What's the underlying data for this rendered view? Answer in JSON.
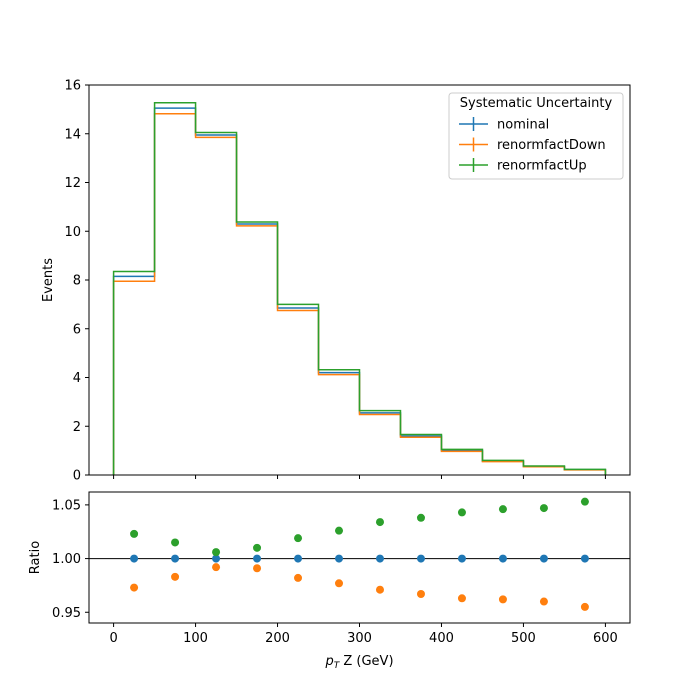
{
  "chart_data": [
    {
      "panel": "top",
      "type": "line",
      "style": "step-histogram",
      "ylabel": "Events",
      "ylim": [
        0,
        16
      ],
      "xlim": [
        -30,
        630
      ],
      "yticks": [
        0,
        2,
        4,
        6,
        8,
        10,
        12,
        14,
        16
      ],
      "bin_edges": [
        0,
        50,
        100,
        150,
        200,
        250,
        300,
        350,
        400,
        450,
        500,
        550,
        600
      ],
      "legend": {
        "title": "Systematic Uncertainty",
        "placement": "top-right"
      },
      "series": [
        {
          "name": "nominal",
          "color": "#1f77b4",
          "values": [
            8.15,
            15.05,
            13.95,
            10.3,
            6.85,
            4.2,
            2.55,
            1.6,
            1.0,
            0.57,
            0.35,
            0.22
          ]
        },
        {
          "name": "renormfactDown",
          "color": "#ff7f0e",
          "values": [
            7.95,
            14.82,
            13.85,
            10.22,
            6.75,
            4.12,
            2.48,
            1.55,
            0.97,
            0.55,
            0.34,
            0.21
          ]
        },
        {
          "name": "renormfactUp",
          "color": "#2ca02c",
          "values": [
            8.35,
            15.27,
            14.05,
            10.38,
            7.0,
            4.32,
            2.64,
            1.66,
            1.05,
            0.6,
            0.37,
            0.23
          ]
        }
      ]
    },
    {
      "panel": "bottom",
      "type": "scatter",
      "ylabel": "Ratio",
      "xlabel": "p_T Z (GeV)",
      "xlabel_main": "p",
      "xlabel_sub": "T",
      "xlabel_rest": " Z (GeV)",
      "ylim": [
        0.94,
        1.062
      ],
      "xlim": [
        -30,
        630
      ],
      "yticks": [
        0.95,
        1.0,
        1.05
      ],
      "ytick_labels": [
        "0.95",
        "1.00",
        "1.05"
      ],
      "xticks": [
        0,
        100,
        200,
        300,
        400,
        500,
        600
      ],
      "reference_line": 1.0,
      "x": [
        25,
        75,
        125,
        175,
        225,
        275,
        325,
        375,
        425,
        475,
        525,
        575
      ],
      "series": [
        {
          "name": "nominal",
          "color": "#1f77b4",
          "values": [
            1.0,
            1.0,
            1.0,
            1.0,
            1.0,
            1.0,
            1.0,
            1.0,
            1.0,
            1.0,
            1.0,
            1.0
          ]
        },
        {
          "name": "renormfactDown",
          "color": "#ff7f0e",
          "values": [
            0.973,
            0.983,
            0.992,
            0.991,
            0.982,
            0.977,
            0.971,
            0.967,
            0.963,
            0.962,
            0.96,
            0.955
          ]
        },
        {
          "name": "renormfactUp",
          "color": "#2ca02c",
          "values": [
            1.023,
            1.015,
            1.006,
            1.01,
            1.019,
            1.026,
            1.034,
            1.038,
            1.043,
            1.046,
            1.047,
            1.053
          ]
        }
      ]
    }
  ]
}
